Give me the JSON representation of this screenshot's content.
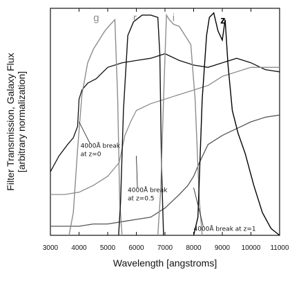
{
  "chart_data": {
    "type": "line",
    "title": "",
    "xlabel": "Wavelength [angstroms]",
    "ylabel_lines": [
      "Filter Transmission, Galaxy Flux",
      "[arbitrary normalization]"
    ],
    "xlim": [
      3000,
      11000
    ],
    "ylim": [
      0,
      1
    ],
    "xticks": [
      3000,
      4000,
      5000,
      6000,
      7000,
      8000,
      9000,
      10000,
      11000
    ],
    "grid": false,
    "filters": [
      {
        "name": "g",
        "color": "#8c8c8c",
        "label_x": 4600,
        "label_y": 0.98,
        "label_color": "#8c8c8c",
        "x": [
          3650,
          3800,
          3950,
          4100,
          4300,
          4500,
          4700,
          4900,
          5100,
          5250,
          5350,
          5420,
          5500
        ],
        "y": [
          0.0,
          0.1,
          0.38,
          0.62,
          0.76,
          0.82,
          0.86,
          0.9,
          0.93,
          0.95,
          0.6,
          0.15,
          0.0
        ]
      },
      {
        "name": "r",
        "color": "#111111",
        "label_x": 5950,
        "label_y": 0.98,
        "label_color": "#8c8c8c",
        "x": [
          5380,
          5450,
          5550,
          5700,
          5900,
          6200,
          6500,
          6750,
          6820,
          6880,
          6950
        ],
        "y": [
          0.0,
          0.15,
          0.55,
          0.88,
          0.94,
          0.97,
          0.97,
          0.96,
          0.8,
          0.3,
          0.0
        ]
      },
      {
        "name": "i",
        "color": "#8c8c8c",
        "label_x": 7300,
        "label_y": 0.98,
        "label_color": "#8c8c8c",
        "x": [
          6750,
          6850,
          6950,
          7050,
          7150,
          7300,
          7500,
          7700,
          7900,
          8050,
          8200,
          8300
        ],
        "y": [
          0.0,
          0.2,
          0.6,
          0.97,
          0.95,
          0.93,
          0.92,
          0.88,
          0.84,
          0.6,
          0.15,
          0.0
        ]
      },
      {
        "name": "z",
        "color": "#000000",
        "label_x": 9020,
        "label_y": 0.97,
        "label_color": "#000000",
        "x": [
          8000,
          8150,
          8300,
          8450,
          8550,
          8700,
          8850,
          9000,
          9100,
          9200,
          9350,
          9550,
          9800,
          10100,
          10400,
          10700,
          11000
        ],
        "y": [
          0.0,
          0.08,
          0.6,
          0.88,
          0.96,
          0.98,
          0.9,
          0.86,
          0.95,
          0.75,
          0.55,
          0.45,
          0.36,
          0.22,
          0.1,
          0.03,
          0.0
        ]
      }
    ],
    "spectra": [
      {
        "name": "z=0",
        "color": "#111111",
        "x": [
          3000,
          3300,
          3600,
          3800,
          3950,
          4000,
          4100,
          4300,
          4600,
          5000,
          5500,
          6000,
          6500,
          7000,
          7500,
          8000,
          8500,
          9000,
          9500,
          10000,
          10500,
          11000
        ],
        "y": [
          0.28,
          0.35,
          0.4,
          0.43,
          0.48,
          0.6,
          0.64,
          0.67,
          0.69,
          0.74,
          0.76,
          0.77,
          0.78,
          0.8,
          0.77,
          0.75,
          0.74,
          0.76,
          0.78,
          0.76,
          0.73,
          0.72
        ]
      },
      {
        "name": "z=0.5",
        "color": "#8c8c8c",
        "x": [
          3000,
          3500,
          4000,
          4500,
          5000,
          5400,
          5600,
          5800,
          6000,
          6500,
          7000,
          7500,
          8000,
          8500,
          9000,
          9500,
          10000,
          10500,
          11000
        ],
        "y": [
          0.18,
          0.18,
          0.19,
          0.22,
          0.26,
          0.32,
          0.44,
          0.5,
          0.55,
          0.58,
          0.6,
          0.62,
          0.64,
          0.66,
          0.7,
          0.72,
          0.74,
          0.74,
          0.74
        ]
      },
      {
        "name": "z=1",
        "color": "#555555",
        "x": [
          3000,
          3500,
          4000,
          4500,
          5000,
          5500,
          6000,
          6500,
          7000,
          7500,
          7800,
          8000,
          8200,
          8500,
          9000,
          9500,
          10000,
          10500,
          11000
        ],
        "y": [
          0.04,
          0.04,
          0.04,
          0.05,
          0.05,
          0.06,
          0.07,
          0.08,
          0.12,
          0.18,
          0.22,
          0.26,
          0.32,
          0.4,
          0.44,
          0.47,
          0.5,
          0.52,
          0.53
        ]
      }
    ],
    "annotations": [
      {
        "lines": [
          "4000Å break",
          "at z=0"
        ],
        "x": 4050,
        "y": 0.385,
        "arrow_to": [
          4000,
          0.5
        ]
      },
      {
        "lines": [
          "4000Å break",
          "at z=0.5"
        ],
        "x": 5700,
        "y": 0.19,
        "arrow_to": [
          6000,
          0.35
        ]
      },
      {
        "lines": [
          "4000Å break at z=1"
        ],
        "x": 8000,
        "y": 0.02,
        "arrow_to": [
          8000,
          0.21
        ]
      }
    ]
  }
}
